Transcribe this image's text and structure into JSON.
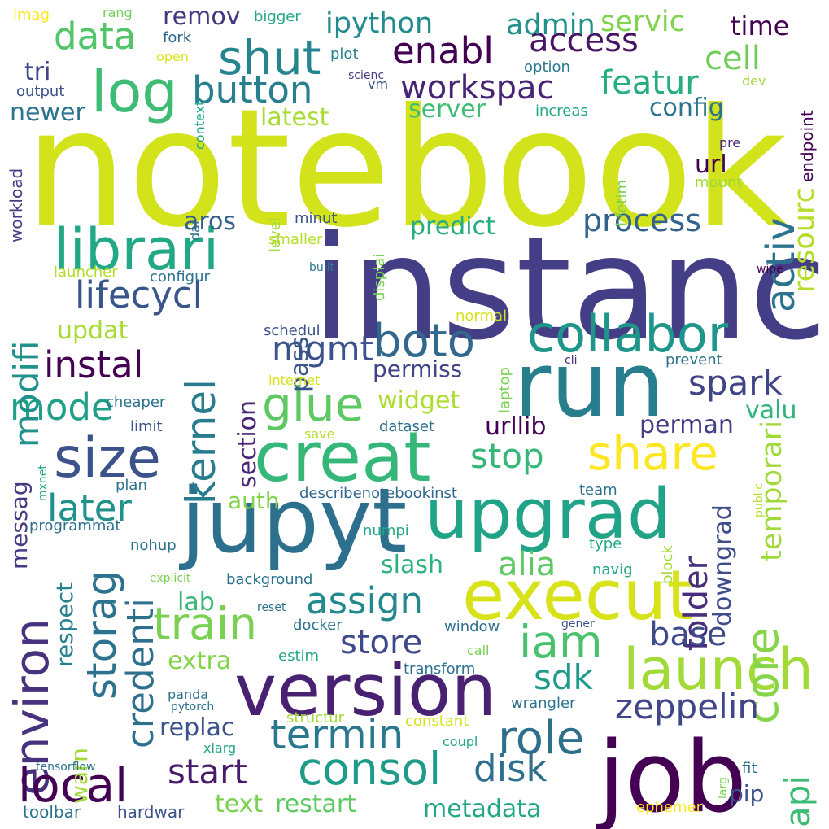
{
  "cloud": {
    "words": [
      {
        "text": "notebook",
        "color": "#d2e21b"
      },
      {
        "text": "instanc",
        "color": "#433e85"
      },
      {
        "text": "run",
        "color": "#277f8e"
      },
      {
        "text": "job",
        "color": "#440154"
      },
      {
        "text": "jupyt",
        "color": "#2d708e"
      },
      {
        "text": "version",
        "color": "#482173"
      },
      {
        "text": "creat",
        "color": "#35b779"
      },
      {
        "text": "upgrad",
        "color": "#20a386"
      },
      {
        "text": "execut",
        "color": "#d8e219"
      },
      {
        "text": "launch",
        "color": "#a2da37"
      },
      {
        "text": "librari",
        "color": "#22a884"
      },
      {
        "text": "log",
        "color": "#3fbc73"
      },
      {
        "text": "size",
        "color": "#3b528b"
      },
      {
        "text": "collabor",
        "color": "#1f968b"
      },
      {
        "text": "kernel",
        "color": "#287c8e"
      },
      {
        "text": "storag",
        "color": "#2c728e"
      },
      {
        "text": "environ",
        "color": "#46327e"
      },
      {
        "text": "train",
        "color": "#7ad151"
      },
      {
        "text": "share",
        "color": "#fde725"
      },
      {
        "text": "role",
        "color": "#2e6f8e"
      },
      {
        "text": "consol",
        "color": "#1e9c89"
      },
      {
        "text": "termin",
        "color": "#2a788e"
      },
      {
        "text": "local",
        "color": "#440154"
      },
      {
        "text": "shut",
        "color": "#25858e"
      },
      {
        "text": "iam",
        "color": "#4ac16d"
      },
      {
        "text": "core",
        "color": "#86d549"
      },
      {
        "text": "activ",
        "color": "#2c738e"
      },
      {
        "text": "boto",
        "color": "#31688e"
      },
      {
        "text": "glue",
        "color": "#5ec962"
      },
      {
        "text": "data",
        "color": "#52c569"
      },
      {
        "text": "workspac",
        "color": "#482475"
      },
      {
        "text": "button",
        "color": "#27808e"
      },
      {
        "text": "access",
        "color": "#471365"
      },
      {
        "text": "enabl",
        "color": "#440154"
      },
      {
        "text": "lifecycl",
        "color": "#39568c"
      },
      {
        "text": "process",
        "color": "#33638d"
      },
      {
        "text": "instal",
        "color": "#440154"
      },
      {
        "text": "credenti",
        "color": "#2d708e"
      },
      {
        "text": "resourc",
        "color": "#b5de2b"
      },
      {
        "text": "temporari",
        "color": "#a0da39"
      },
      {
        "text": "api",
        "color": "#3dbc74"
      },
      {
        "text": "mode",
        "color": "#1fa188"
      },
      {
        "text": "modifi",
        "color": "#21918c"
      },
      {
        "text": "disk",
        "color": "#2e6e8e"
      },
      {
        "text": "sdk",
        "color": "#1e9b8a"
      },
      {
        "text": "zeppelin",
        "color": "#404688"
      },
      {
        "text": "assign",
        "color": "#23898e"
      },
      {
        "text": "stop",
        "color": "#35b779"
      },
      {
        "text": "later",
        "color": "#21918c"
      },
      {
        "text": "folder",
        "color": "#472e7c"
      },
      {
        "text": "alia",
        "color": "#5ec962"
      },
      {
        "text": "spark",
        "color": "#414487"
      },
      {
        "text": "mgmt",
        "color": "#3b528b"
      },
      {
        "text": "start",
        "color": "#481a6c"
      },
      {
        "text": "store",
        "color": "#3e4989"
      },
      {
        "text": "base",
        "color": "#3e4a89"
      },
      {
        "text": "featur",
        "color": "#26ad81"
      },
      {
        "text": "cell",
        "color": "#6ece58"
      },
      {
        "text": "ipython",
        "color": "#238a8d"
      },
      {
        "text": "data",
        "color": "#52c569"
      },
      {
        "text": "admin",
        "color": "#20928c"
      },
      {
        "text": "servic",
        "color": "#7fd34e"
      },
      {
        "text": "time",
        "color": "#440154"
      },
      {
        "text": "remov",
        "color": "#453882"
      },
      {
        "text": "config",
        "color": "#2b748e"
      },
      {
        "text": "server",
        "color": "#3fbc73"
      },
      {
        "text": "latest",
        "color": "#a8db34"
      },
      {
        "text": "newer",
        "color": "#2c738e"
      },
      {
        "text": "tri",
        "color": "#3f4788"
      },
      {
        "text": "url",
        "color": "#440154"
      },
      {
        "text": "predict",
        "color": "#25ac82"
      },
      {
        "text": "aros",
        "color": "#355e8d"
      },
      {
        "text": "pass",
        "color": "#39568c"
      },
      {
        "text": "section",
        "color": "#482576"
      },
      {
        "text": "downgrad",
        "color": "#3e4c8a"
      },
      {
        "text": "widget",
        "color": "#addc30"
      },
      {
        "text": "urllib",
        "color": "#440154"
      },
      {
        "text": "perman",
        "color": "#433e85"
      },
      {
        "text": "valu",
        "color": "#2fb47c"
      },
      {
        "text": "permiss",
        "color": "#414287"
      },
      {
        "text": "updat",
        "color": "#a8db34"
      },
      {
        "text": "messag",
        "color": "#443a83"
      },
      {
        "text": "respect",
        "color": "#26828e"
      },
      {
        "text": "warn",
        "color": "#a2da37"
      },
      {
        "text": "auth",
        "color": "#84d44b"
      },
      {
        "text": "slash",
        "color": "#2db27d"
      },
      {
        "text": "lab",
        "color": "#38b977"
      },
      {
        "text": "extra",
        "color": "#84d44b"
      },
      {
        "text": "replac",
        "color": "#3b528b"
      },
      {
        "text": "text",
        "color": "#7ad151"
      },
      {
        "text": "restart",
        "color": "#5ec962"
      },
      {
        "text": "metadata",
        "color": "#22a884"
      },
      {
        "text": "pip",
        "color": "#3b528b"
      },
      {
        "text": "toolbar",
        "color": "#2c728e"
      },
      {
        "text": "hardwar",
        "color": "#3b528b"
      },
      {
        "text": "ephemer",
        "color": "#fde725"
      },
      {
        "text": "imag",
        "color": "#fde725"
      },
      {
        "text": "rang",
        "color": "#6ece58"
      },
      {
        "text": "bigger",
        "color": "#22a884"
      },
      {
        "text": "fork",
        "color": "#31688e"
      },
      {
        "text": "open",
        "color": "#d8e219"
      },
      {
        "text": "plot",
        "color": "#26828e"
      },
      {
        "text": "option",
        "color": "#2a788e"
      },
      {
        "text": "dev",
        "color": "#a2da37"
      },
      {
        "text": "output",
        "color": "#3b528b"
      },
      {
        "text": "vm",
        "color": "#3b528b"
      },
      {
        "text": "scienc",
        "color": "#433e85"
      },
      {
        "text": "increas",
        "color": "#22a884"
      },
      {
        "text": "endpoint",
        "color": "#440154"
      },
      {
        "text": "context",
        "color": "#22a884"
      },
      {
        "text": "pre",
        "color": "#482878"
      },
      {
        "text": "workload",
        "color": "#433e85"
      },
      {
        "text": "dai",
        "color": "#2c728e"
      },
      {
        "text": "level",
        "color": "#a2da37"
      },
      {
        "text": "lifetim",
        "color": "#7ad151"
      },
      {
        "text": "mount",
        "color": "#a2da37"
      },
      {
        "text": "minut",
        "color": "#3b528b"
      },
      {
        "text": "smaller",
        "color": "#b5de2b"
      },
      {
        "text": "built",
        "color": "#2a788e"
      },
      {
        "text": "launcher",
        "color": "#b5de2b"
      },
      {
        "text": "configur",
        "color": "#2c728e"
      },
      {
        "text": "displai",
        "color": "#7ad151"
      },
      {
        "text": "wipe",
        "color": "#440154"
      },
      {
        "text": "schedul",
        "color": "#3b528b"
      },
      {
        "text": "normal",
        "color": "#d8e219"
      },
      {
        "text": "laptop",
        "color": "#7ad151"
      },
      {
        "text": "cli",
        "color": "#482878"
      },
      {
        "text": "prevent",
        "color": "#2c728e"
      },
      {
        "text": "internet",
        "color": "#d8e219"
      },
      {
        "text": "cheaper",
        "color": "#2c728e"
      },
      {
        "text": "limit",
        "color": "#3b528b"
      },
      {
        "text": "dataset",
        "color": "#2c728e"
      },
      {
        "text": "save",
        "color": "#b5de2b"
      },
      {
        "text": "mxnet",
        "color": "#22a884"
      },
      {
        "text": "plan",
        "color": "#2c728e"
      },
      {
        "text": "describenotebookinst",
        "color": "#31688e"
      },
      {
        "text": "team",
        "color": "#2c728e"
      },
      {
        "text": "public",
        "color": "#b5de2b"
      },
      {
        "text": "programmat",
        "color": "#2c728e"
      },
      {
        "text": "numpi",
        "color": "#22a884"
      },
      {
        "text": "nohup",
        "color": "#2c728e"
      },
      {
        "text": "type",
        "color": "#22a884"
      },
      {
        "text": "block",
        "color": "#a2da37"
      },
      {
        "text": "explicit",
        "color": "#7ad151"
      },
      {
        "text": "background",
        "color": "#2c728e"
      },
      {
        "text": "navig",
        "color": "#22a884"
      },
      {
        "text": "reset",
        "color": "#2c728e"
      },
      {
        "text": "docker",
        "color": "#2c728e"
      },
      {
        "text": "window",
        "color": "#2c728e"
      },
      {
        "text": "gener",
        "color": "#3b528b"
      },
      {
        "text": "estim",
        "color": "#22a884"
      },
      {
        "text": "call",
        "color": "#7ad151"
      },
      {
        "text": "transform",
        "color": "#2c728e"
      },
      {
        "text": "panda",
        "color": "#2c728e"
      },
      {
        "text": "pytorch",
        "color": "#2c728e"
      },
      {
        "text": "wrangler",
        "color": "#2c728e"
      },
      {
        "text": "structur",
        "color": "#a2da37"
      },
      {
        "text": "constant",
        "color": "#d8e219"
      },
      {
        "text": "xlarg",
        "color": "#22a884"
      },
      {
        "text": "coupl",
        "color": "#22a884"
      },
      {
        "text": "larg",
        "color": "#7ad151"
      },
      {
        "text": "fit",
        "color": "#2c728e"
      },
      {
        "text": "tensorflow",
        "color": "#2c728e"
      }
    ]
  }
}
